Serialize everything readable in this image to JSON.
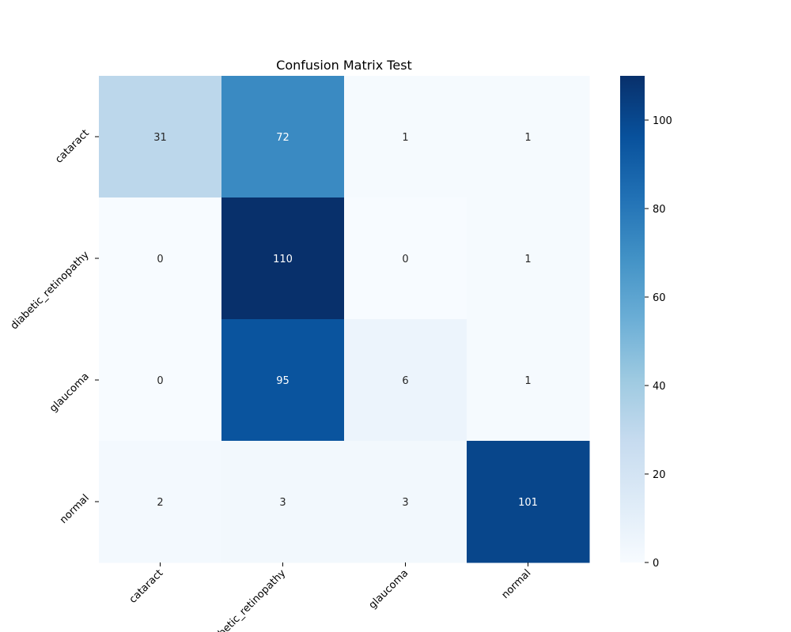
{
  "chart_data": {
    "type": "heatmap",
    "title": "Confusion Matrix Test",
    "xlabel": "",
    "ylabel": "",
    "x_categories": [
      "cataract",
      "diabetic_retinopathy",
      "glaucoma",
      "normal"
    ],
    "y_categories": [
      "cataract",
      "diabetic_retinopathy",
      "glaucoma",
      "normal"
    ],
    "matrix": [
      [
        31,
        72,
        1,
        1
      ],
      [
        0,
        110,
        0,
        1
      ],
      [
        0,
        95,
        6,
        1
      ],
      [
        2,
        3,
        3,
        101
      ]
    ],
    "colormap": "Blues",
    "vmin": 0,
    "vmax": 110,
    "colorbar_ticks": [
      0,
      20,
      40,
      60,
      80,
      100
    ],
    "colorbar_position": "right",
    "annotations": true,
    "grid": false
  }
}
